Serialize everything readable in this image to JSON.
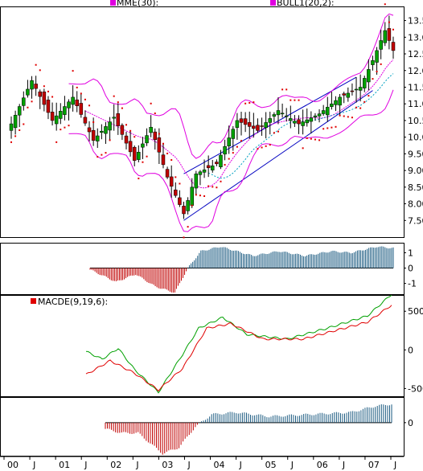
{
  "chart_data": [
    {
      "type": "candlestick",
      "legend": [
        {
          "label": "MME(30):",
          "color": "#e000e0"
        },
        {
          "label": "BULL1(20,2):",
          "color": "#e000e0"
        }
      ],
      "y_ticks": [
        "13.5",
        "13.0",
        "12.5",
        "12.0",
        "11.5",
        "11.0",
        "10.5",
        "10.0",
        "9.50",
        "9.00",
        "8.50",
        "8.00",
        "7.50"
      ],
      "ylim": [
        7.0,
        13.9
      ],
      "x_ticks": [
        "00",
        "J",
        "01",
        "J",
        "02",
        "J",
        "03",
        "J",
        "04",
        "J",
        "05",
        "J",
        "06",
        "J",
        "07",
        "J"
      ],
      "grid": false,
      "colors": {
        "up": "#00a000",
        "down": "#c00000",
        "sar": "#e00000",
        "bollinger": "#e000e0",
        "mme": "#e000e0",
        "ma": "#00a0c0",
        "channel": "#0000c0"
      },
      "series_keypoints": [
        [
          0,
          10.4
        ],
        [
          5,
          11.7
        ],
        [
          10,
          10.5
        ],
        [
          15,
          11.2
        ],
        [
          20,
          9.9
        ],
        [
          25,
          10.6
        ],
        [
          30,
          9.3
        ],
        [
          34,
          10.3
        ],
        [
          38,
          8.8
        ],
        [
          42,
          7.7
        ],
        [
          45,
          8.9
        ],
        [
          50,
          9.2
        ],
        [
          55,
          10.5
        ],
        [
          60,
          10.2
        ],
        [
          65,
          10.8
        ],
        [
          70,
          10.4
        ],
        [
          75,
          10.7
        ],
        [
          80,
          11.2
        ],
        [
          85,
          11.5
        ],
        [
          88,
          12.3
        ],
        [
          91,
          13.2
        ],
        [
          93,
          12.6
        ]
      ]
    },
    {
      "type": "histogram",
      "y_ticks": [
        "1",
        "0",
        "-1"
      ],
      "ylim": [
        -1.7,
        1.6
      ],
      "series_keypoints": [
        [
          0,
          -0.1
        ],
        [
          8,
          -0.9
        ],
        [
          14,
          -0.4
        ],
        [
          20,
          -1.2
        ],
        [
          26,
          -1.6
        ],
        [
          30,
          0
        ],
        [
          34,
          1.1
        ],
        [
          40,
          1.4
        ],
        [
          50,
          0.8
        ],
        [
          58,
          1.1
        ],
        [
          66,
          0.8
        ],
        [
          74,
          1.1
        ],
        [
          80,
          1.0
        ],
        [
          88,
          1.4
        ],
        [
          93,
          1.3
        ]
      ]
    },
    {
      "type": "line",
      "legend": [
        {
          "label": "MACDE(9,19,6):",
          "color": "#e00000"
        }
      ],
      "y_ticks": [
        "500",
        "0",
        "-500"
      ],
      "ylim": [
        -600,
        700
      ],
      "series": [
        {
          "color": "#00a000",
          "keypoints": [
            [
              0,
              -20
            ],
            [
              4,
              -120
            ],
            [
              8,
              20
            ],
            [
              12,
              -250
            ],
            [
              18,
              -550
            ],
            [
              24,
              -60
            ],
            [
              28,
              280
            ],
            [
              34,
              420
            ],
            [
              40,
              200
            ],
            [
              50,
              140
            ],
            [
              60,
              280
            ],
            [
              70,
              440
            ],
            [
              76,
              720
            ]
          ]
        },
        {
          "color": "#e00000",
          "keypoints": [
            [
              0,
              -320
            ],
            [
              6,
              -140
            ],
            [
              12,
              -300
            ],
            [
              18,
              -520
            ],
            [
              24,
              -240
            ],
            [
              30,
              280
            ],
            [
              36,
              340
            ],
            [
              44,
              140
            ],
            [
              54,
              140
            ],
            [
              62,
              250
            ],
            [
              70,
              360
            ],
            [
              76,
              580
            ]
          ]
        }
      ]
    },
    {
      "type": "histogram",
      "y_ticks": [
        "0"
      ],
      "ylim": [
        -1.6,
        1.2
      ],
      "series_keypoints": [
        [
          0,
          -0.3
        ],
        [
          4,
          -0.5
        ],
        [
          8,
          -0.5
        ],
        [
          14,
          -1.5
        ],
        [
          18,
          -1.2
        ],
        [
          22,
          -0.2
        ],
        [
          26,
          0.4
        ],
        [
          32,
          0.5
        ],
        [
          40,
          0.3
        ],
        [
          50,
          0.4
        ],
        [
          60,
          0.5
        ],
        [
          66,
          0.8
        ],
        [
          70,
          0.9
        ]
      ]
    }
  ]
}
